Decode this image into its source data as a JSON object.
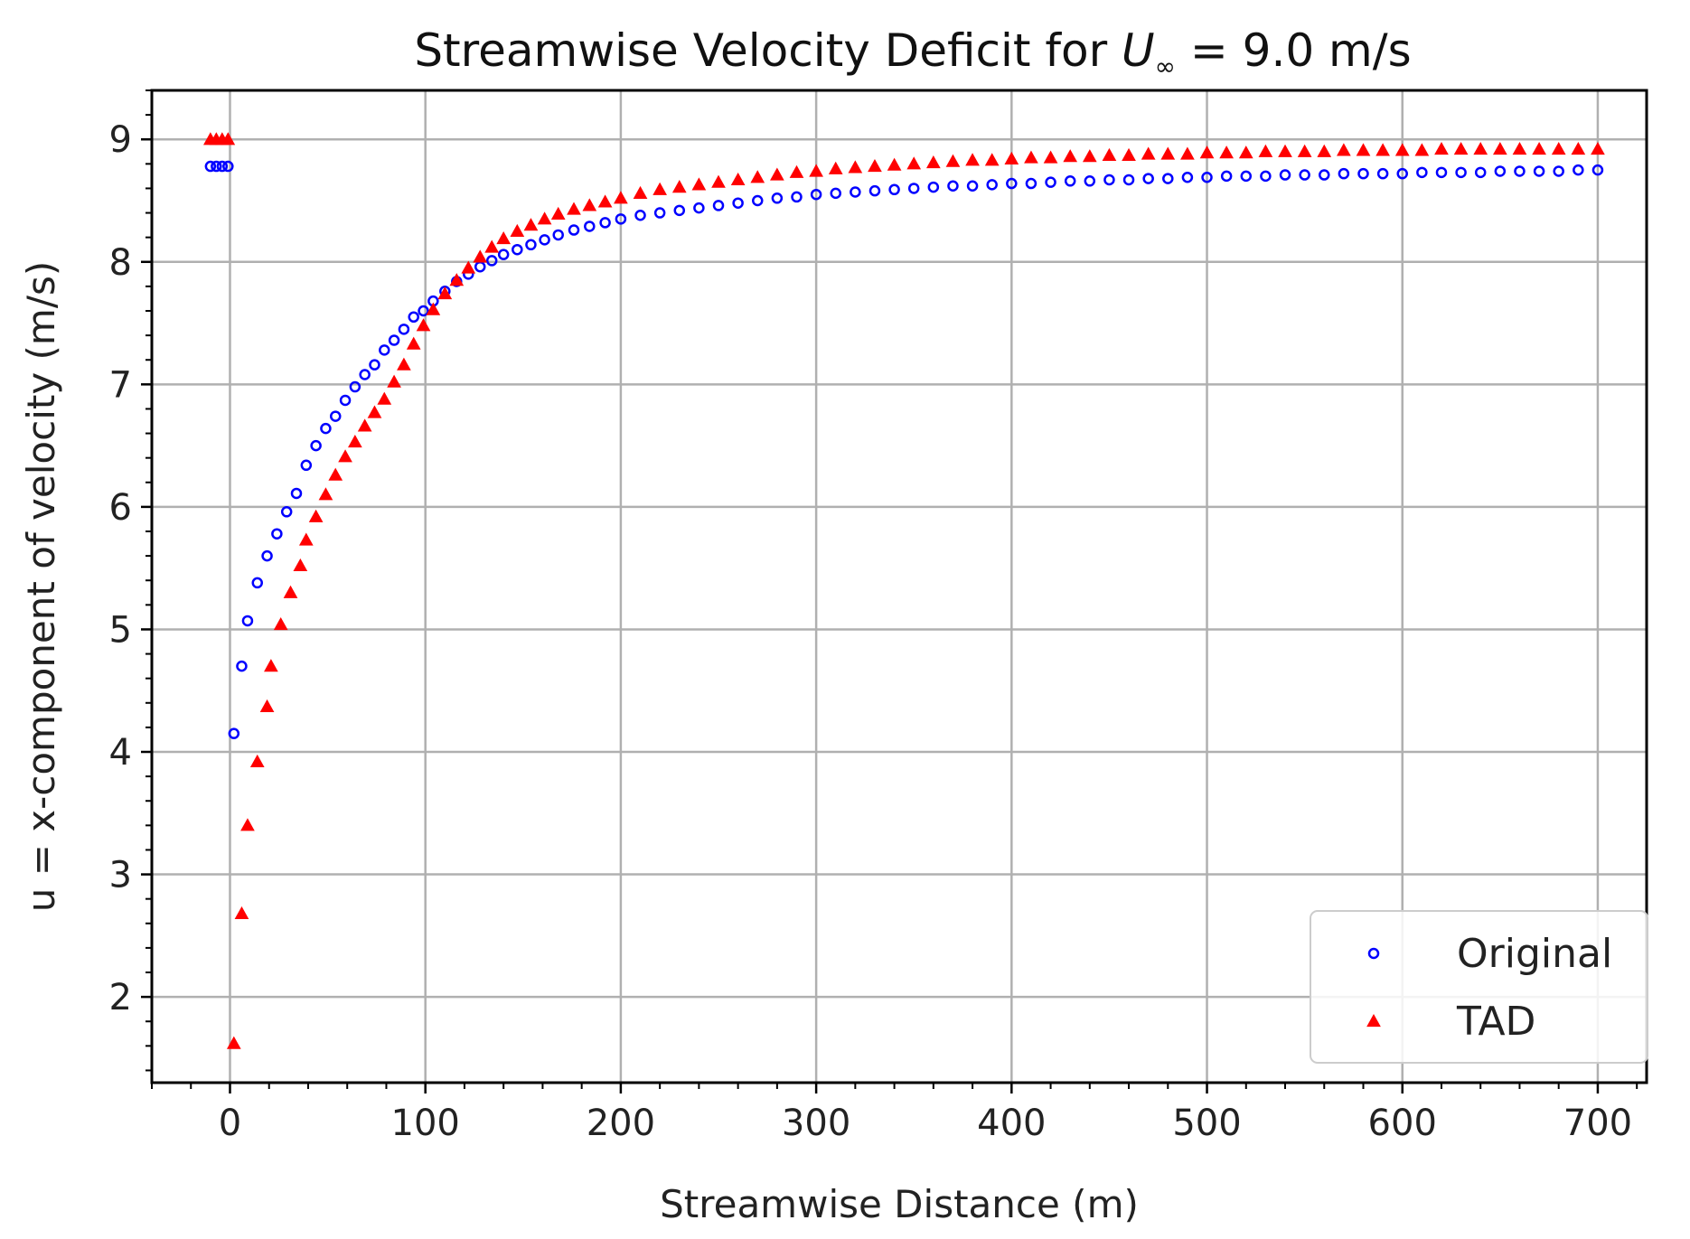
{
  "chart_data": {
    "type": "scatter",
    "title": "Streamwise Velocity Deficit for U∞ = 9.0 m/s",
    "title_parts": {
      "prefix": "Streamwise Velocity Deficit for ",
      "symbol": "U",
      "subscript": "∞",
      "suffix": " = 9.0 m/s"
    },
    "xlabel": "Streamwise Distance (m)",
    "ylabel": "u = x-component of velocity (m/s)",
    "xlim": [
      -40,
      725
    ],
    "ylim": [
      1.3,
      9.4
    ],
    "xticks": [
      0,
      100,
      200,
      300,
      400,
      500,
      600,
      700
    ],
    "yticks": [
      2,
      3,
      4,
      5,
      6,
      7,
      8,
      9
    ],
    "grid": true,
    "legend_position": "bottom-right",
    "colors": {
      "Original": "#0000ff",
      "TAD": "#ff0000"
    },
    "series": [
      {
        "name": "Original",
        "marker": "circle",
        "x": [
          -10,
          -7,
          -4,
          -1,
          2,
          6,
          9,
          14,
          19,
          24,
          29,
          34,
          39,
          44,
          49,
          54,
          59,
          64,
          69,
          74,
          79,
          84,
          89,
          94,
          99,
          104,
          110,
          116,
          122,
          128,
          134,
          140,
          147,
          154,
          161,
          168,
          176,
          184,
          192,
          200,
          210,
          220,
          230,
          240,
          250,
          260,
          270,
          280,
          290,
          300,
          310,
          320,
          330,
          340,
          350,
          360,
          370,
          380,
          390,
          400,
          410,
          420,
          430,
          440,
          450,
          460,
          470,
          480,
          490,
          500,
          510,
          520,
          530,
          540,
          550,
          560,
          570,
          580,
          590,
          600,
          610,
          620,
          630,
          640,
          650,
          660,
          670,
          680,
          690,
          700
        ],
        "y": [
          8.78,
          8.78,
          8.78,
          8.78,
          4.15,
          4.7,
          5.07,
          5.38,
          5.6,
          5.78,
          5.96,
          6.11,
          6.34,
          6.5,
          6.64,
          6.74,
          6.87,
          6.98,
          7.08,
          7.16,
          7.28,
          7.36,
          7.45,
          7.55,
          7.6,
          7.68,
          7.76,
          7.84,
          7.9,
          7.96,
          8.01,
          8.06,
          8.1,
          8.14,
          8.18,
          8.22,
          8.26,
          8.29,
          8.32,
          8.35,
          8.38,
          8.4,
          8.42,
          8.44,
          8.46,
          8.48,
          8.5,
          8.52,
          8.53,
          8.55,
          8.56,
          8.57,
          8.58,
          8.59,
          8.6,
          8.61,
          8.62,
          8.62,
          8.63,
          8.64,
          8.64,
          8.65,
          8.66,
          8.66,
          8.67,
          8.67,
          8.68,
          8.68,
          8.69,
          8.69,
          8.7,
          8.7,
          8.7,
          8.71,
          8.71,
          8.71,
          8.72,
          8.72,
          8.72,
          8.72,
          8.73,
          8.73,
          8.73,
          8.73,
          8.74,
          8.74,
          8.74,
          8.74,
          8.75,
          8.75
        ]
      },
      {
        "name": "TAD",
        "marker": "triangle",
        "x": [
          -10,
          -7,
          -4,
          -1,
          2,
          6,
          9,
          14,
          19,
          21,
          26,
          31,
          36,
          39,
          44,
          49,
          54,
          59,
          64,
          69,
          74,
          79,
          84,
          89,
          94,
          99,
          104,
          110,
          116,
          122,
          128,
          134,
          140,
          147,
          154,
          161,
          168,
          176,
          184,
          192,
          200,
          210,
          220,
          230,
          240,
          250,
          260,
          270,
          280,
          290,
          300,
          310,
          320,
          330,
          340,
          350,
          360,
          370,
          380,
          390,
          400,
          410,
          420,
          430,
          440,
          450,
          460,
          470,
          480,
          490,
          500,
          510,
          520,
          530,
          540,
          550,
          560,
          570,
          580,
          590,
          600,
          610,
          620,
          630,
          640,
          650,
          660,
          670,
          680,
          690,
          700
        ],
        "y": [
          9.0,
          9.0,
          9.0,
          9.0,
          1.62,
          2.68,
          3.4,
          3.92,
          4.37,
          4.7,
          5.04,
          5.3,
          5.52,
          5.73,
          5.92,
          6.1,
          6.26,
          6.41,
          6.53,
          6.66,
          6.77,
          6.88,
          7.02,
          7.16,
          7.33,
          7.48,
          7.61,
          7.74,
          7.85,
          7.95,
          8.04,
          8.12,
          8.19,
          8.25,
          8.3,
          8.35,
          8.39,
          8.43,
          8.46,
          8.49,
          8.52,
          8.56,
          8.59,
          8.61,
          8.63,
          8.65,
          8.67,
          8.69,
          8.71,
          8.73,
          8.74,
          8.76,
          8.77,
          8.78,
          8.79,
          8.8,
          8.81,
          8.82,
          8.83,
          8.83,
          8.84,
          8.85,
          8.85,
          8.86,
          8.86,
          8.87,
          8.87,
          8.88,
          8.88,
          8.88,
          8.89,
          8.89,
          8.89,
          8.9,
          8.9,
          8.9,
          8.9,
          8.91,
          8.91,
          8.91,
          8.91,
          8.91,
          8.92,
          8.92,
          8.92,
          8.92,
          8.92,
          8.92,
          8.92,
          8.92,
          8.92
        ]
      }
    ]
  }
}
